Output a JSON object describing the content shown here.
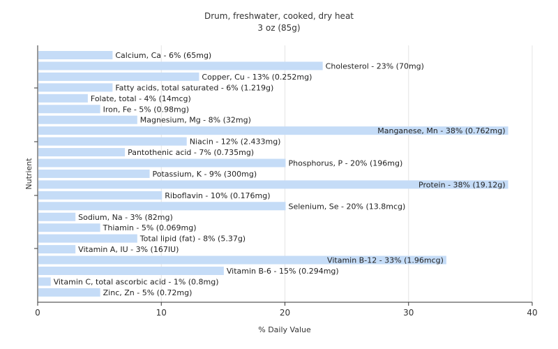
{
  "chart_data": {
    "type": "bar",
    "orientation": "horizontal",
    "title": "Drum, freshwater, cooked, dry heat",
    "subtitle": "3 oz (85g)",
    "xlabel": "% Daily Value",
    "ylabel": "Nutrient",
    "xlim": [
      0,
      40
    ],
    "xticks": [
      0,
      10,
      20,
      30,
      40
    ],
    "grid": true,
    "bar_color": "#c5dcf7",
    "categories": [
      "Calcium, Ca",
      "Cholesterol",
      "Copper, Cu",
      "Fatty acids, total saturated",
      "Folate, total",
      "Iron, Fe",
      "Magnesium, Mg",
      "Manganese, Mn",
      "Niacin",
      "Pantothenic acid",
      "Phosphorus, P",
      "Potassium, K",
      "Protein",
      "Riboflavin",
      "Selenium, Se",
      "Sodium, Na",
      "Thiamin",
      "Total lipid (fat)",
      "Vitamin A, IU",
      "Vitamin B-12",
      "Vitamin B-6",
      "Vitamin C, total ascorbic acid",
      "Zinc, Zn"
    ],
    "values": [
      6,
      23,
      13,
      6,
      4,
      5,
      8,
      38,
      12,
      7,
      20,
      9,
      38,
      10,
      20,
      3,
      5,
      8,
      3,
      33,
      15,
      1,
      5
    ],
    "labels": [
      "Calcium, Ca - 6% (65mg)",
      "Cholesterol - 23% (70mg)",
      "Copper, Cu - 13% (0.252mg)",
      "Fatty acids, total saturated - 6% (1.219g)",
      "Folate, total - 4% (14mcg)",
      "Iron, Fe - 5% (0.98mg)",
      "Magnesium, Mg - 8% (32mg)",
      "Manganese, Mn - 38% (0.762mg)",
      "Niacin - 12% (2.433mg)",
      "Pantothenic acid - 7% (0.735mg)",
      "Phosphorus, P - 20% (196mg)",
      "Potassium, K - 9% (300mg)",
      "Protein - 38% (19.12g)",
      "Riboflavin - 10% (0.176mg)",
      "Selenium, Se - 20% (13.8mcg)",
      "Sodium, Na - 3% (82mg)",
      "Thiamin - 5% (0.069mg)",
      "Total lipid (fat) - 8% (5.37g)",
      "Vitamin A, IU - 3% (167IU)",
      "Vitamin B-12 - 33% (1.96mcg)",
      "Vitamin B-6 - 15% (0.294mg)",
      "Vitamin C, total ascorbic acid - 1% (0.8mg)",
      "Zinc, Zn - 5% (0.72mg)"
    ]
  }
}
